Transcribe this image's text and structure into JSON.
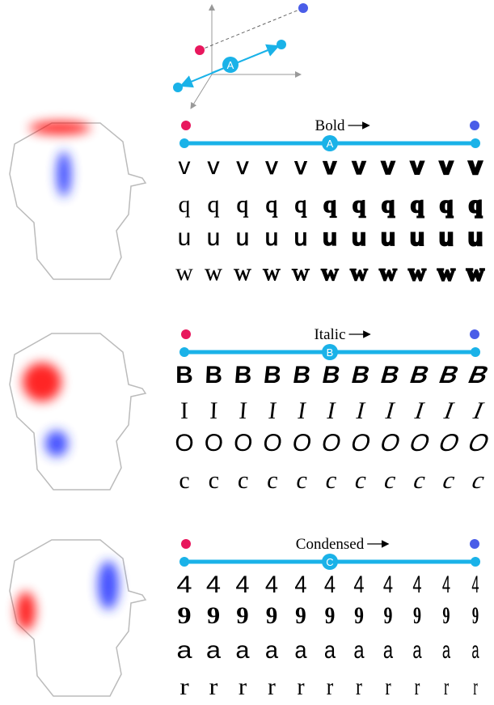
{
  "top_diagram": {
    "badge": "A"
  },
  "panels": [
    {
      "label": "Bold",
      "badge": "A",
      "rows": [
        [
          "v",
          "v",
          "v",
          "v",
          "v",
          "v",
          "v",
          "v",
          "v",
          "v",
          "v"
        ],
        [
          "q",
          "q",
          "q",
          "q",
          "q",
          "q",
          "q",
          "q",
          "q",
          "q",
          "q"
        ],
        [
          "u",
          "u",
          "u",
          "u",
          "u",
          "u",
          "u",
          "u",
          "u",
          "u",
          "u"
        ],
        [
          "w",
          "w",
          "w",
          "w",
          "w",
          "w",
          "w",
          "w",
          "w",
          "w",
          "w"
        ]
      ]
    },
    {
      "label": "Italic",
      "badge": "B",
      "rows": [
        [
          "B",
          "B",
          "B",
          "B",
          "B",
          "B",
          "B",
          "B",
          "B",
          "B",
          "B"
        ],
        [
          "I",
          "I",
          "I",
          "I",
          "I",
          "I",
          "I",
          "I",
          "I",
          "I",
          "I"
        ],
        [
          "O",
          "O",
          "O",
          "O",
          "O",
          "O",
          "O",
          "O",
          "O",
          "O",
          "O"
        ],
        [
          "c",
          "c",
          "c",
          "c",
          "c",
          "c",
          "c",
          "c",
          "c",
          "c",
          "c"
        ]
      ]
    },
    {
      "label": "Condensed",
      "badge": "C",
      "rows": [
        [
          "4",
          "4",
          "4",
          "4",
          "4",
          "4",
          "4",
          "4",
          "4",
          "4",
          "4"
        ],
        [
          "9",
          "9",
          "9",
          "9",
          "9",
          "9",
          "9",
          "9",
          "9",
          "9",
          "9"
        ],
        [
          "a",
          "a",
          "a",
          "a",
          "a",
          "a",
          "a",
          "a",
          "a",
          "a",
          "a"
        ],
        [
          "r",
          "r",
          "r",
          "r",
          "r",
          "r",
          "r",
          "r",
          "r",
          "r",
          "r"
        ]
      ]
    }
  ]
}
